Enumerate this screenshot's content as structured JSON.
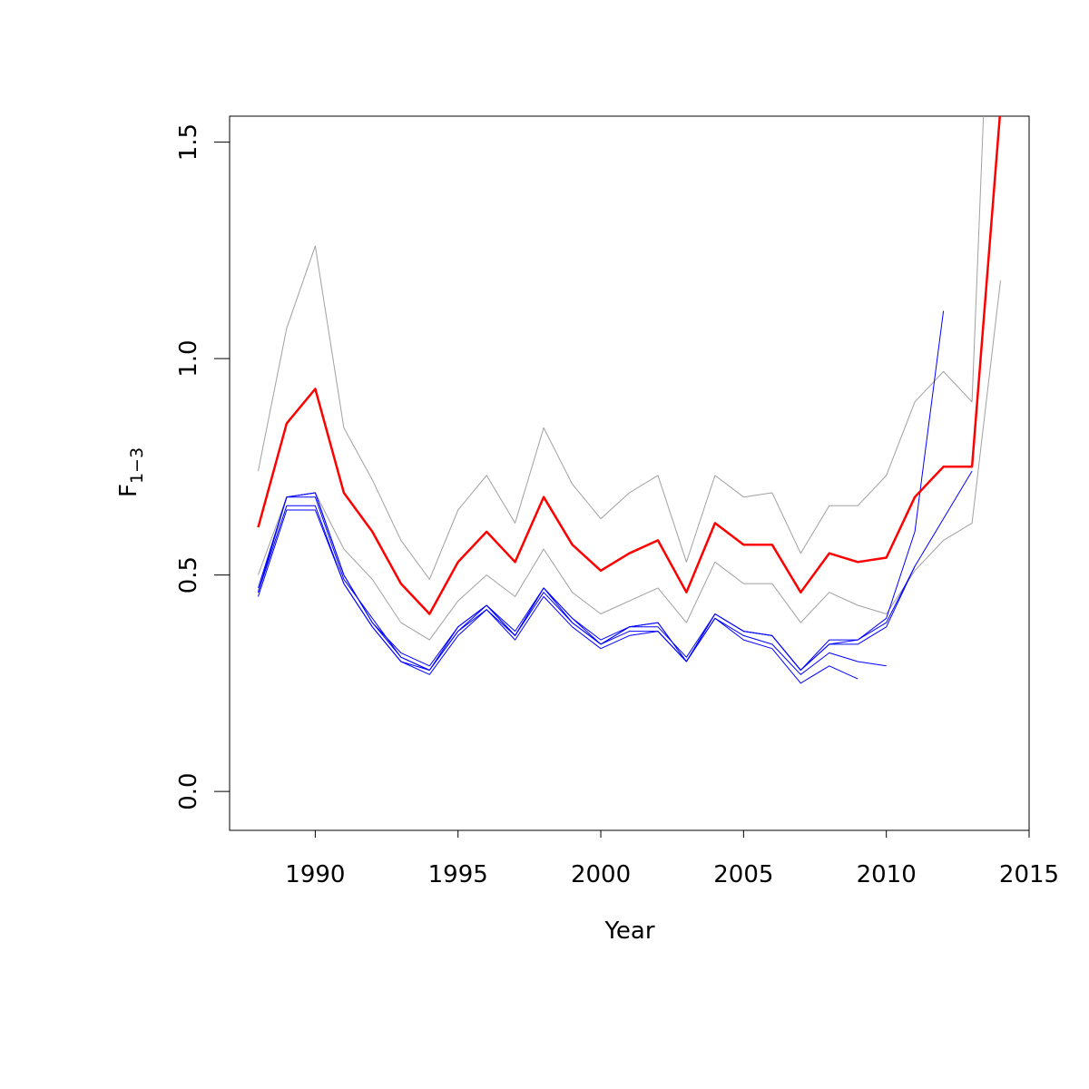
{
  "chart_data": {
    "type": "line",
    "title": "",
    "xlabel": "Year",
    "ylabel": {
      "main": "F",
      "subscript": "1−3"
    },
    "xlim": [
      1987,
      2015
    ],
    "ylim": [
      -0.09,
      1.56
    ],
    "xticks": [
      1990,
      1995,
      2000,
      2005,
      2010,
      2015
    ],
    "xtick_labels": [
      "1990",
      "1995",
      "2000",
      "2005",
      "2010",
      "2015"
    ],
    "yticks": [
      0.0,
      0.5,
      1.0,
      1.5
    ],
    "ytick_labels": [
      "0.0",
      "0.5",
      "1.0",
      "1.5"
    ],
    "grid": false,
    "legend": "none",
    "colors": {
      "estimate": "#ff0000",
      "bounds": "#a0a0a0",
      "retro": "#0000ff"
    },
    "series": [
      {
        "role": "estimate",
        "color": "#ff0000",
        "width": 2.5,
        "x": [
          1988,
          1989,
          1990,
          1991,
          1992,
          1993,
          1994,
          1995,
          1996,
          1997,
          1998,
          1999,
          2000,
          2001,
          2002,
          2003,
          2004,
          2005,
          2006,
          2007,
          2008,
          2009,
          2010,
          2011,
          2012,
          2013,
          2014
        ],
        "y": [
          0.61,
          0.85,
          0.93,
          0.69,
          0.6,
          0.48,
          0.41,
          0.53,
          0.6,
          0.53,
          0.68,
          0.57,
          0.51,
          0.55,
          0.58,
          0.46,
          0.62,
          0.57,
          0.57,
          0.46,
          0.55,
          0.53,
          0.54,
          0.68,
          0.75,
          0.75,
          1.58
        ]
      },
      {
        "role": "upper",
        "color": "#a0a0a0",
        "width": 1,
        "x": [
          1988,
          1989,
          1990,
          1991,
          1992,
          1993,
          1994,
          1995,
          1996,
          1997,
          1998,
          1999,
          2000,
          2001,
          2002,
          2003,
          2004,
          2005,
          2006,
          2007,
          2008,
          2009,
          2010,
          2011,
          2012,
          2013,
          2013.4
        ],
        "y": [
          0.74,
          1.07,
          1.26,
          0.84,
          0.72,
          0.58,
          0.49,
          0.65,
          0.73,
          0.62,
          0.84,
          0.71,
          0.63,
          0.69,
          0.73,
          0.53,
          0.73,
          0.68,
          0.69,
          0.55,
          0.66,
          0.66,
          0.73,
          0.9,
          0.97,
          0.9,
          1.56
        ]
      },
      {
        "role": "lower",
        "color": "#a0a0a0",
        "width": 1,
        "x": [
          1988,
          1989,
          1990,
          1991,
          1992,
          1993,
          1994,
          1995,
          1996,
          1997,
          1998,
          1999,
          2000,
          2001,
          2002,
          2003,
          2004,
          2005,
          2006,
          2007,
          2008,
          2009,
          2010,
          2011,
          2012,
          2013,
          2014
        ],
        "y": [
          0.5,
          0.68,
          0.69,
          0.56,
          0.49,
          0.39,
          0.35,
          0.44,
          0.5,
          0.45,
          0.56,
          0.46,
          0.41,
          0.44,
          0.47,
          0.39,
          0.53,
          0.48,
          0.48,
          0.39,
          0.46,
          0.43,
          0.41,
          0.51,
          0.58,
          0.62,
          1.18
        ]
      },
      {
        "role": "retro",
        "color": "#0000ff",
        "width": 1,
        "x": [
          1988,
          1989,
          1990,
          1991,
          1992,
          1993,
          1994,
          1995,
          1996,
          1997,
          1998,
          1999,
          2000,
          2001,
          2002,
          2003,
          2004,
          2005,
          2006,
          2007,
          2008,
          2009,
          2010,
          2011,
          2012
        ],
        "y": [
          0.46,
          0.68,
          0.69,
          0.5,
          0.39,
          0.32,
          0.29,
          0.38,
          0.43,
          0.37,
          0.47,
          0.4,
          0.35,
          0.38,
          0.39,
          0.3,
          0.41,
          0.37,
          0.36,
          0.28,
          0.35,
          0.35,
          0.4,
          0.6,
          1.11
        ]
      },
      {
        "role": "retro",
        "color": "#0000ff",
        "width": 1,
        "x": [
          1988,
          1989,
          1990,
          1991,
          1992,
          1993,
          1994,
          1995,
          1996,
          1997,
          1998,
          1999,
          2000,
          2001,
          2002,
          2003,
          2004,
          2005,
          2006,
          2007,
          2008,
          2009,
          2010,
          2011,
          2012,
          2013
        ],
        "y": [
          0.47,
          0.68,
          0.68,
          0.49,
          0.4,
          0.31,
          0.28,
          0.37,
          0.43,
          0.36,
          0.47,
          0.39,
          0.34,
          0.38,
          0.38,
          0.31,
          0.41,
          0.37,
          0.36,
          0.28,
          0.34,
          0.35,
          0.39,
          0.52,
          0.63,
          0.74
        ]
      },
      {
        "role": "retro",
        "color": "#0000ff",
        "width": 1,
        "x": [
          1988,
          1989,
          1990,
          1991,
          1992,
          1993,
          1994,
          1995,
          1996,
          1997,
          1998,
          1999,
          2000,
          2001,
          2002,
          2003,
          2004,
          2005,
          2006,
          2007,
          2008,
          2009,
          2010,
          2011
        ],
        "y": [
          0.46,
          0.68,
          0.69,
          0.5,
          0.39,
          0.31,
          0.28,
          0.38,
          0.43,
          0.36,
          0.47,
          0.4,
          0.34,
          0.38,
          0.39,
          0.3,
          0.41,
          0.37,
          0.36,
          0.28,
          0.34,
          0.34,
          0.38,
          0.52
        ]
      },
      {
        "role": "retro",
        "color": "#0000ff",
        "width": 1,
        "x": [
          1988,
          1989,
          1990,
          1991,
          1992,
          1993,
          1994,
          1995,
          1996,
          1997,
          1998,
          1999,
          2000,
          2001,
          2002,
          2003,
          2004,
          2005,
          2006,
          2007,
          2008,
          2009,
          2010
        ],
        "y": [
          0.46,
          0.66,
          0.66,
          0.48,
          0.38,
          0.3,
          0.28,
          0.37,
          0.42,
          0.36,
          0.46,
          0.39,
          0.34,
          0.37,
          0.37,
          0.3,
          0.4,
          0.36,
          0.34,
          0.27,
          0.32,
          0.3,
          0.29
        ]
      },
      {
        "role": "retro",
        "color": "#0000ff",
        "width": 1,
        "x": [
          1988,
          1989,
          1990,
          1991,
          1992,
          1993,
          1994,
          1995,
          1996,
          1997,
          1998,
          1999,
          2000,
          2001,
          2002,
          2003,
          2004,
          2005,
          2006,
          2007,
          2008,
          2009
        ],
        "y": [
          0.45,
          0.65,
          0.65,
          0.48,
          0.38,
          0.3,
          0.27,
          0.36,
          0.42,
          0.35,
          0.45,
          0.38,
          0.33,
          0.36,
          0.37,
          0.3,
          0.4,
          0.35,
          0.33,
          0.25,
          0.29,
          0.26
        ]
      }
    ]
  }
}
